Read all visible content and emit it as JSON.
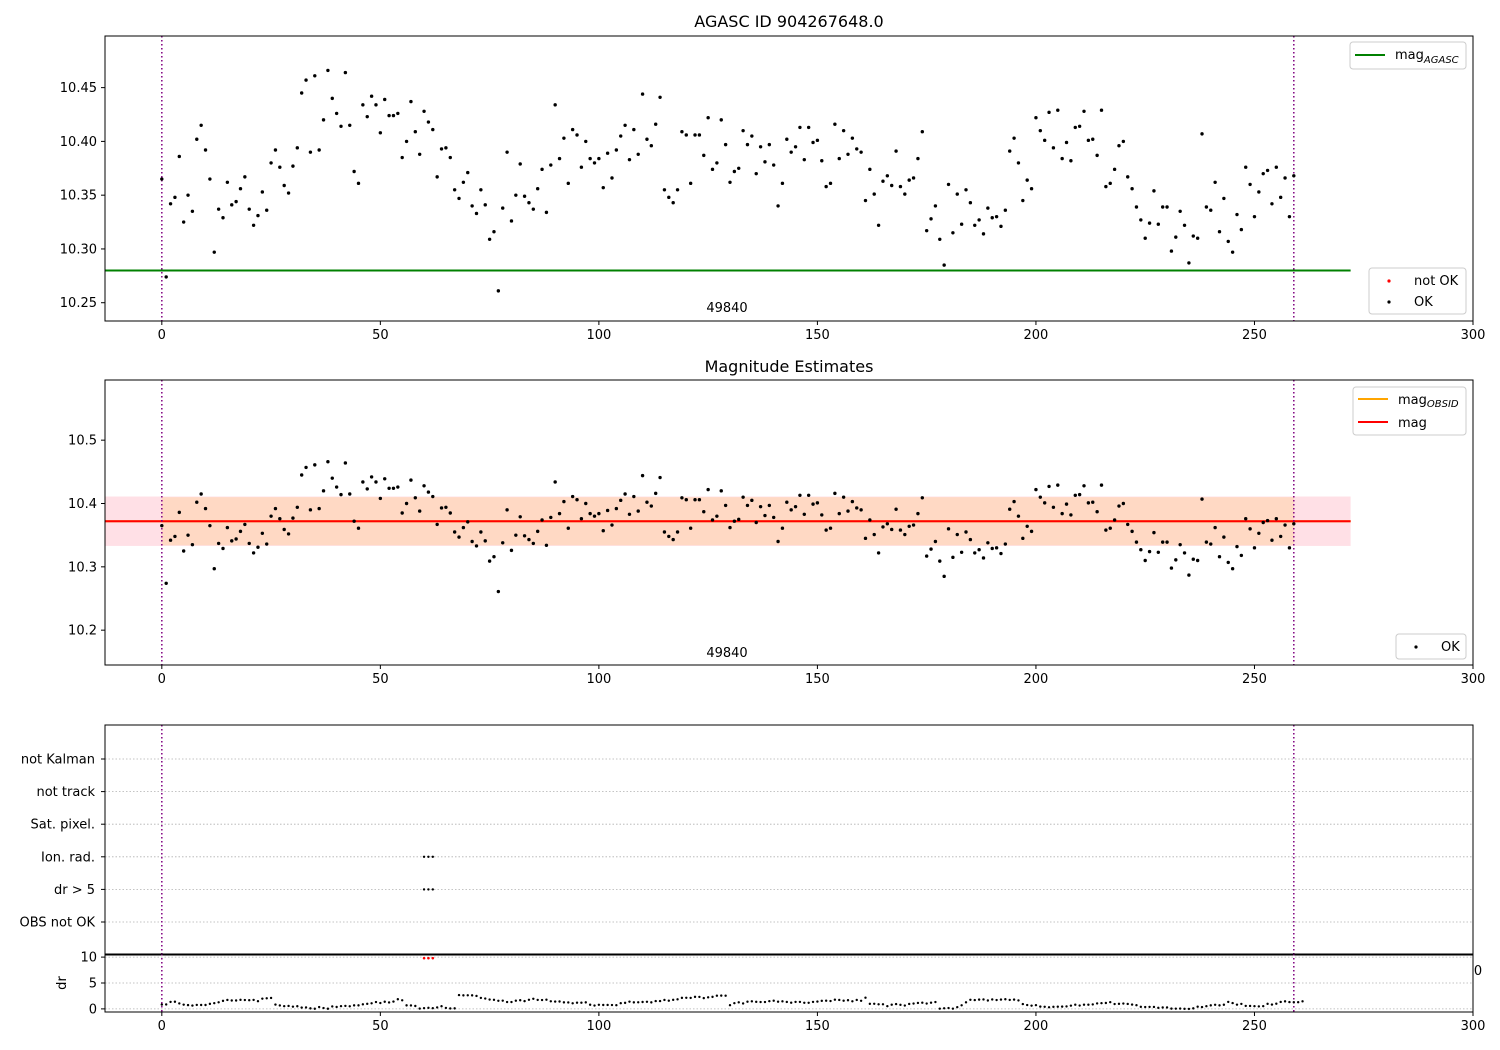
{
  "figure": {
    "panel1_title": "AGASC ID 904267648.0",
    "panel2_title": "Magnitude Estimates",
    "obs_label": "49840",
    "stray_label": "0",
    "dr_ylabel": "dr"
  },
  "colors": {
    "ok": "#000000",
    "not_ok": "#ff0000",
    "mag_agasc": "#008000",
    "mag_obsid": "#ffa500",
    "mag": "#ff0000",
    "band_outer": "#ffe0e6",
    "band_inner": "#ffd9c4",
    "obs_boundary": "#800080",
    "grid": "#b0b0b0"
  },
  "legends": {
    "p1_mag_base": "mag",
    "p1_mag_sub": "AGASC",
    "p1_not_ok": "not OK",
    "p1_ok": "OK",
    "p2_mag_obsid_base": "mag",
    "p2_mag_obsid_sub": "OBSID",
    "p2_mag": "mag",
    "p2_ok": "OK"
  },
  "chart_data": [
    {
      "type": "scatter",
      "title": "AGASC ID 904267648.0",
      "xlim": [
        -13,
        300
      ],
      "ylim": [
        10.233,
        10.498
      ],
      "xticks": [
        0,
        50,
        100,
        150,
        200,
        250,
        300
      ],
      "yticks": [
        10.25,
        10.3,
        10.35,
        10.4,
        10.45
      ],
      "ytick_labels": [
        "10.25",
        "10.30",
        "10.35",
        "10.40",
        "10.45"
      ],
      "series": [
        {
          "name": "OK",
          "x_start": 0,
          "x_step": 1,
          "values": [
            10.365,
            10.274,
            10.342,
            10.348,
            10.386,
            10.325,
            10.35,
            10.335,
            10.402,
            10.415,
            10.392,
            10.365,
            10.297,
            10.337,
            10.329,
            10.362,
            10.341,
            10.344,
            10.356,
            10.367,
            10.337,
            10.322,
            10.331,
            10.353,
            10.336,
            10.38,
            10.392,
            10.376,
            10.359,
            10.352,
            10.377,
            10.394,
            10.445,
            10.457,
            10.39,
            10.461,
            10.392,
            10.42,
            10.466,
            10.44,
            10.426,
            10.414,
            10.464,
            10.415,
            10.372,
            10.361,
            10.434,
            10.423,
            10.442,
            10.434,
            10.408,
            10.439,
            10.424,
            10.424,
            10.426,
            10.385,
            10.4,
            10.437,
            10.409,
            10.388,
            10.428,
            10.418,
            10.411,
            10.367,
            10.393,
            10.394,
            10.385,
            10.355,
            10.347,
            10.362,
            10.371,
            10.34,
            10.333,
            10.355,
            10.341,
            10.309,
            10.316,
            10.261,
            10.338,
            10.39,
            10.326,
            10.35,
            10.379,
            10.349,
            10.343,
            10.337,
            10.356,
            10.374,
            10.334,
            10.378,
            10.434,
            10.384,
            10.403,
            10.361,
            10.411,
            10.406,
            10.376,
            10.4,
            10.384,
            10.38,
            10.384,
            10.357,
            10.389,
            10.366,
            10.392,
            10.405,
            10.415,
            10.383,
            10.411,
            10.388,
            10.444,
            10.402,
            10.396,
            10.416,
            10.441,
            10.355,
            10.348,
            10.343,
            10.355,
            10.409,
            10.406,
            10.361,
            10.406,
            10.406,
            10.387,
            10.422,
            10.374,
            10.38,
            10.42,
            10.397,
            10.362,
            10.372,
            10.375,
            10.41,
            10.397,
            10.405,
            10.37,
            10.395,
            10.381,
            10.397,
            10.378,
            10.34,
            10.361,
            10.402,
            10.39,
            10.395,
            10.413,
            10.383,
            10.413,
            10.399,
            10.401,
            10.382,
            10.358,
            10.361,
            10.416,
            10.384,
            10.41,
            10.388,
            10.403,
            10.393,
            10.39,
            10.345,
            10.374,
            10.351,
            10.322,
            10.363,
            10.368,
            10.359,
            10.391,
            10.358,
            10.351,
            10.364,
            10.366,
            10.384,
            10.409,
            10.317,
            10.328,
            10.34,
            10.309,
            10.285,
            10.36,
            10.315,
            10.351,
            10.323,
            10.355,
            10.343,
            10.322,
            10.327,
            10.314,
            10.338,
            10.329,
            10.33,
            10.321,
            10.336,
            10.391,
            10.403,
            10.38,
            10.345,
            10.364,
            10.356,
            10.422,
            10.41,
            10.401,
            10.427,
            10.394,
            10.429,
            10.384,
            10.399,
            10.382,
            10.413,
            10.414,
            10.428,
            10.401,
            10.402,
            10.387,
            10.429,
            10.358,
            10.361,
            10.374,
            10.396,
            10.4,
            10.367,
            10.356,
            10.339,
            10.327,
            10.31,
            10.324,
            10.354,
            10.323,
            10.339,
            10.339,
            10.298,
            10.311,
            10.335,
            10.322,
            10.287,
            10.312,
            10.31,
            10.407,
            10.339,
            10.336,
            10.362,
            10.316,
            10.347,
            10.307,
            10.297,
            10.332,
            10.318,
            10.376,
            10.36,
            10.33,
            10.353,
            10.37,
            10.373,
            10.342,
            10.376,
            10.348,
            10.366,
            10.33,
            10.368
          ]
        }
      ],
      "reference_lines": [
        {
          "name": "mag_AGASC",
          "y": 10.28,
          "x_range": [
            -13,
            272
          ]
        }
      ],
      "vertical_lines": [
        0,
        259
      ],
      "legend": "top-right / bottom-right",
      "grid": false
    },
    {
      "type": "scatter",
      "title": "Magnitude Estimates",
      "xlim": [
        -13,
        300
      ],
      "ylim": [
        10.145,
        10.595
      ],
      "xticks": [
        0,
        50,
        100,
        150,
        200,
        250,
        300
      ],
      "yticks": [
        10.2,
        10.3,
        10.4,
        10.5
      ],
      "ytick_labels": [
        "10.2",
        "10.3",
        "10.4",
        "10.5"
      ],
      "series_ref": "same OK values as panel 1",
      "reference_lines": [
        {
          "name": "mag_OBSID",
          "y": 10.372,
          "x_range": [
            -13,
            272
          ]
        },
        {
          "name": "mag",
          "y": 10.372,
          "x_range": [
            -13,
            272
          ]
        }
      ],
      "bands": [
        {
          "y_range": [
            10.333,
            10.411
          ],
          "x_range": [
            -13,
            272
          ],
          "style": "outer"
        },
        {
          "y_range": [
            10.334,
            10.41
          ],
          "x_range": [
            0,
            259
          ],
          "style": "inner"
        }
      ],
      "vertical_lines": [
        0,
        259
      ],
      "legend": "top-right / bottom-right",
      "grid": false
    },
    {
      "type": "scatter",
      "title": "",
      "xlim": [
        -13,
        300
      ],
      "categories": [
        "OBS not OK",
        "dr > 5",
        "Ion. rad.",
        "Sat. pixel.",
        "not track",
        "not Kalman"
      ],
      "flags": [
        {
          "category": "dr > 5",
          "x": [
            60,
            61,
            62
          ]
        },
        {
          "category": "Ion. rad.",
          "x": [
            60,
            61,
            62
          ]
        }
      ],
      "vertical_lines": [
        0,
        259
      ],
      "grid": true
    },
    {
      "type": "scatter",
      "title": "",
      "ylabel": "dr",
      "xlim": [
        -13,
        300
      ],
      "ylim": [
        -0.6,
        10.6
      ],
      "xticks": [
        0,
        50,
        100,
        150,
        200,
        250,
        300
      ],
      "yticks": [
        0,
        5,
        10
      ],
      "ytick_labels": [
        "0",
        "5",
        "10"
      ],
      "series": [
        {
          "name": "OK",
          "x_start": 0,
          "x_step": 1,
          "values": [
            0.83,
            0.86,
            1.35,
            1.38,
            1.06,
            0.82,
            0.73,
            0.64,
            0.77,
            0.75,
            0.75,
            0.97,
            1.11,
            1.28,
            1.55,
            1.72,
            1.62,
            1.62,
            1.75,
            1.71,
            1.68,
            1.73,
            1.48,
            1.98,
            2.05,
            2.11,
            0.83,
            0.66,
            0.53,
            0.57,
            0.43,
            0.51,
            0.25,
            0.28,
            0.1,
            0.03,
            0.36,
            0.17,
            0.03,
            0.47,
            0.37,
            0.53,
            0.58,
            0.5,
            0.68,
            0.68,
            0.88,
            0.98,
            1.08,
            1.32,
            1.13,
            1.38,
            1.24,
            1.41,
            1.86,
            1.66,
            0.68,
            0.66,
            0.56,
            0.06,
            0.14,
            0.2,
            0.13,
            0.29,
            0.51,
            0.19,
            0.08,
            0.1,
            2.67,
            2.61,
            2.63,
            2.61,
            2.5,
            2.12,
            2.0,
            1.81,
            1.75,
            1.57,
            1.59,
            1.32,
            1.32,
            1.58,
            1.67,
            1.5,
            1.76,
            1.95,
            1.73,
            1.71,
            1.77,
            1.47,
            1.41,
            1.43,
            1.26,
            1.24,
            1.08,
            1.19,
            1.19,
            1.26,
            0.8,
            0.65,
            0.79,
            0.75,
            0.76,
            0.74,
            0.71,
            1.1,
            1.16,
            1.4,
            1.26,
            1.28,
            1.33,
            1.37,
            1.26,
            1.51,
            1.51,
            1.72,
            1.58,
            1.75,
            1.85,
            2.13,
            2.14,
            2.12,
            2.32,
            2.31,
            2.08,
            2.23,
            2.32,
            2.55,
            2.56,
            2.55,
            0.71,
            1.11,
            1.27,
            1.05,
            1.39,
            1.46,
            1.36,
            1.32,
            1.32,
            1.49,
            1.58,
            1.39,
            1.46,
            1.34,
            1.19,
            1.35,
            1.35,
            1.18,
            1.18,
            1.35,
            1.41,
            1.56,
            1.58,
            1.52,
            1.77,
            1.72,
            1.58,
            1.67,
            1.47,
            1.72,
            1.57,
            2.16,
            0.98,
            0.99,
            0.89,
            0.89,
            0.53,
            0.81,
            0.93,
            0.78,
            0.65,
            0.95,
            1.03,
            1.15,
            1.19,
            1.03,
            1.19,
            1.32,
            0.04,
            0.12,
            0.17,
            0.04,
            0.33,
            0.7,
            1.27,
            1.76,
            1.7,
            1.79,
            1.82,
            1.62,
            1.82,
            1.71,
            1.8,
            1.86,
            1.73,
            1.79,
            1.64,
            0.93,
            0.74,
            0.62,
            0.72,
            0.44,
            0.41,
            0.31,
            0.4,
            0.42,
            0.44,
            0.48,
            0.62,
            0.81,
            0.65,
            0.81,
            0.81,
            0.87,
            1.06,
            1.11,
            1.14,
            1.3,
            0.94,
            0.98,
            1.03,
            0.95,
            0.83,
            0.71,
            0.4,
            0.36,
            0.38,
            0.37,
            0.2,
            0.28,
            0.28,
            0.05,
            0.04,
            0.06,
            0.01,
            0.0,
            0.1,
            0.42,
            0.35,
            0.52,
            0.68,
            0.79,
            0.68,
            0.8,
            1.35,
            1.12,
            0.82,
            0.96,
            0.58,
            0.57,
            0.53,
            0.48,
            0.53,
            0.98,
            0.83,
            1.0,
            1.34,
            1.45,
            1.31,
            1.29,
            1.29,
            1.46
          ]
        },
        {
          "name": "not OK",
          "x": [
            60,
            61,
            62
          ],
          "values": [
            9.8,
            9.8,
            9.8
          ]
        }
      ],
      "vertical_lines": [
        0,
        259
      ],
      "grid": true
    }
  ]
}
